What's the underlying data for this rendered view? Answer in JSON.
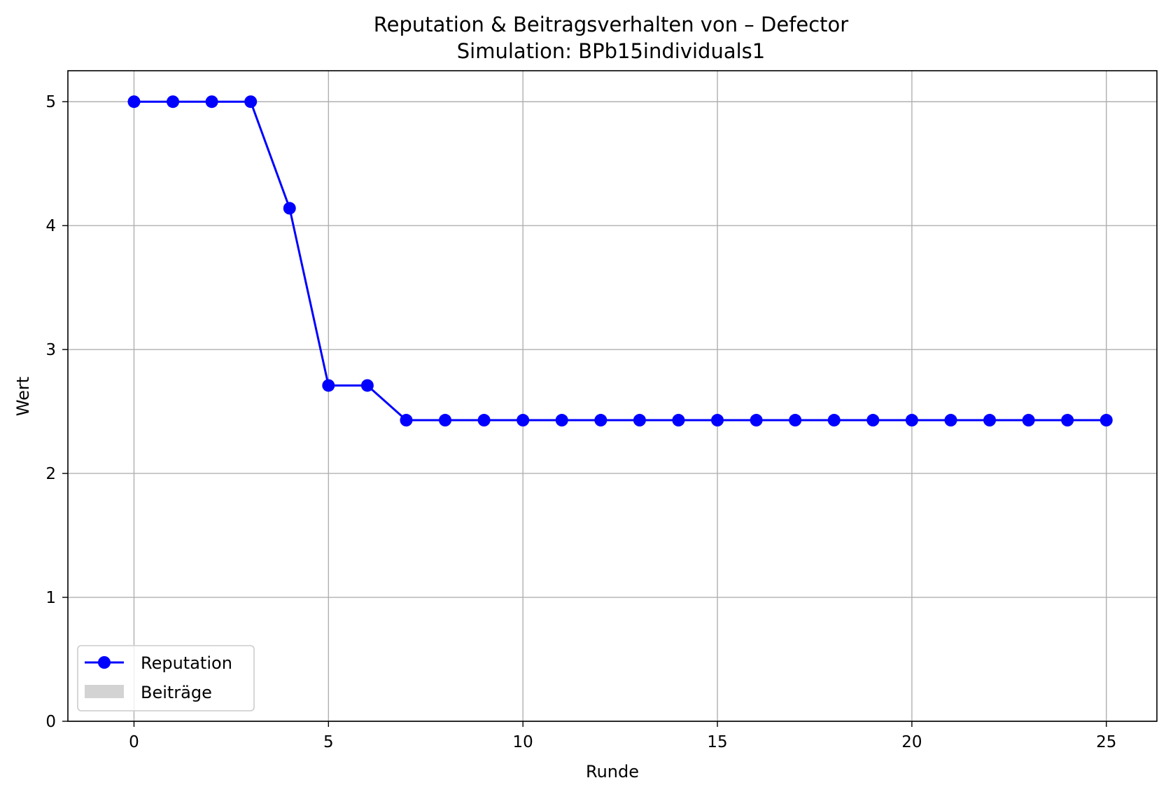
{
  "chart_data": {
    "type": "line",
    "title": "Reputation & Beitragsverhalten von – Defector",
    "subtitle": "Simulation: BPb15individuals1",
    "xlabel": "Runde",
    "ylabel": "Wert",
    "xlim": [
      -1.7,
      26.3
    ],
    "ylim": [
      0,
      5.25
    ],
    "xticks": [
      0,
      5,
      10,
      15,
      20,
      25
    ],
    "yticks": [
      0,
      1,
      2,
      3,
      4,
      5
    ],
    "grid": true,
    "legend_position": "lower-left",
    "series": [
      {
        "name": "Reputation",
        "color": "#0000ff",
        "marker": "circle",
        "x": [
          0,
          1,
          2,
          3,
          4,
          5,
          6,
          7,
          8,
          9,
          10,
          11,
          12,
          13,
          14,
          15,
          16,
          17,
          18,
          19,
          20,
          21,
          22,
          23,
          24,
          25
        ],
        "values": [
          5,
          5,
          5,
          5,
          4.14,
          2.71,
          2.71,
          2.43,
          2.43,
          2.43,
          2.43,
          2.43,
          2.43,
          2.43,
          2.43,
          2.43,
          2.43,
          2.43,
          2.43,
          2.43,
          2.43,
          2.43,
          2.43,
          2.43,
          2.43,
          2.43
        ]
      },
      {
        "name": "Beiträge",
        "color": "#d3d3d3",
        "type": "bar",
        "x": [],
        "values": []
      }
    ]
  }
}
